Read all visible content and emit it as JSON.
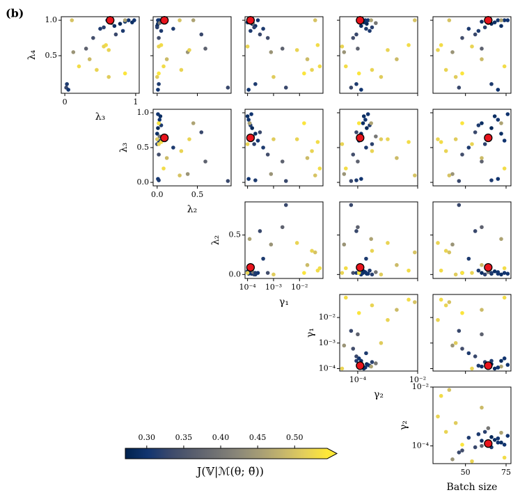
{
  "chart_data": {
    "type": "pairplot",
    "panel_label": "(b)",
    "variables": [
      {
        "label": "λ₄",
        "lim": [
          -0.03,
          1.05
        ],
        "log": false,
        "yticks": [
          0.5,
          {
            "value": 1,
            "label": "1.0"
          }
        ]
      },
      {
        "label": "λ₃",
        "lim": [
          -0.05,
          1.05
        ],
        "log": false,
        "xticks": [
          0,
          1
        ],
        "yticks": [
          {
            "value": 0,
            "label": "0.0"
          },
          0.5,
          {
            "value": 1,
            "label": "1.0"
          }
        ]
      },
      {
        "label": "λ₂",
        "lim": [
          -0.05,
          0.92
        ],
        "log": false,
        "xticks": [
          {
            "value": 0,
            "label": "0.0"
          },
          0.5
        ],
        "yticks": [
          {
            "value": 0,
            "label": "0.0"
          },
          0.5
        ]
      },
      {
        "label": "γ₁",
        "lim": [
          8e-05,
          0.08
        ],
        "log": true,
        "xticks": [
          {
            "value": 0.0001,
            "label": "10⁻⁴"
          },
          {
            "value": 0.001,
            "label": "10⁻³"
          },
          {
            "value": 0.01,
            "label": "10⁻²"
          }
        ],
        "yticks": [
          {
            "value": 0.0001,
            "label": "10⁻⁴"
          },
          {
            "value": 0.001,
            "label": "10⁻³"
          },
          {
            "value": 0.01,
            "label": "10⁻²"
          }
        ]
      },
      {
        "label": "γ₂",
        "lim": [
          2.5e-05,
          0.01
        ],
        "log": true,
        "xticks": [
          {
            "value": 0.0001,
            "label": "10⁻⁴"
          },
          {
            "value": 0.01,
            "label": "10⁻²"
          }
        ],
        "yticks": [
          {
            "value": 0.0001,
            "label": "10⁻⁴"
          },
          {
            "value": 0.01,
            "label": "10⁻²"
          }
        ]
      },
      {
        "label": "Batch size",
        "lim": [
          30,
          78
        ],
        "log": false,
        "xticks": [
          50,
          75
        ]
      }
    ],
    "samples": [
      [
        0.98,
        0.85,
        0.02,
        0.00012,
        0.00015,
        60,
        0.29
      ],
      [
        0.95,
        0.78,
        0.01,
        0.00015,
        0.0002,
        66,
        0.28
      ],
      [
        1.0,
        0.9,
        0.03,
        0.00011,
        0.00018,
        70,
        0.3
      ],
      [
        0.92,
        0.7,
        0.0,
        0.0002,
        0.00013,
        72,
        0.29
      ],
      [
        0.85,
        0.82,
        0.05,
        0.00013,
        0.00025,
        58,
        0.31
      ],
      [
        1.0,
        0.6,
        0.02,
        0.00025,
        0.00011,
        74,
        0.3
      ],
      [
        0.9,
        0.55,
        0.0,
        0.00018,
        0.0003,
        62,
        0.32
      ],
      [
        0.97,
        0.95,
        0.04,
        0.0001,
        0.00016,
        68,
        0.29
      ],
      [
        0.8,
        0.72,
        0.55,
        0.0003,
        9e-05,
        56,
        0.33
      ],
      [
        0.88,
        0.5,
        0.2,
        0.0004,
        0.00019,
        52,
        0.31
      ],
      [
        1.0,
        0.98,
        0.01,
        0.00014,
        0.00022,
        76,
        0.3
      ],
      [
        0.75,
        0.4,
        0.02,
        0.0006,
        7e-05,
        48,
        0.34
      ],
      [
        0.6,
        0.3,
        0.6,
        0.0022,
        0.0001,
        60,
        0.37
      ],
      [
        0.96,
        0.66,
        0.03,
        0.00016,
        0.0004,
        64,
        0.4
      ],
      [
        1.0,
        0.85,
        0.45,
        0.00012,
        0.00028,
        72,
        0.46
      ],
      [
        0.55,
        0.12,
        0.38,
        0.0008,
        3.5e-05,
        42,
        0.44
      ],
      [
        0.05,
        0.02,
        0.88,
        0.003,
        6e-05,
        46,
        0.33
      ],
      [
        0.02,
        0.05,
        0.01,
        0.00011,
        0.00013,
        70,
        0.3
      ],
      [
        0.1,
        0.03,
        0.02,
        0.0002,
        9e-05,
        66,
        0.31
      ],
      [
        0.65,
        0.58,
        0.05,
        0.05,
        0.005,
        35,
        0.53
      ],
      [
        0.3,
        0.45,
        0.3,
        0.03,
        0.0003,
        38,
        0.52
      ],
      [
        0.25,
        0.85,
        0.02,
        0.015,
        0.00011,
        48,
        0.54
      ],
      [
        0.58,
        0.62,
        0.4,
        0.008,
        0.001,
        33,
        0.52
      ],
      [
        0.35,
        0.2,
        0.08,
        0.06,
        4e-05,
        74,
        0.53
      ],
      [
        0.2,
        0.62,
        0.0,
        0.001,
        0.0006,
        44,
        0.51
      ],
      [
        1.0,
        0.1,
        0.28,
        0.04,
        0.008,
        40,
        0.5
      ],
      [
        0.63,
        0.55,
        0.02,
        0.0001,
        3e-05,
        54,
        0.52
      ],
      [
        0.45,
        0.35,
        0.12,
        0.02,
        0.002,
        60,
        0.49
      ]
    ],
    "best": [
      1.0,
      0.64,
      0.09,
      0.00013,
      0.00012,
      64
    ],
    "best_color": "#e8141c",
    "colorbar": {
      "label": "J(𝕍|ℳ(θ; θ̃))",
      "lim": [
        0.271,
        0.544
      ],
      "ticks": [
        {
          "value": 0.3,
          "label": "0.30"
        },
        0.35,
        {
          "value": 0.4,
          "label": "0.40"
        },
        0.45,
        {
          "value": 0.5,
          "label": "0.50"
        }
      ],
      "colormap": [
        "#00224e",
        "#123570",
        "#3b496c",
        "#575d6d",
        "#707173",
        "#8a8779",
        "#a69d75",
        "#c4b56c",
        "#e4cf5b",
        "#fee838"
      ]
    }
  }
}
